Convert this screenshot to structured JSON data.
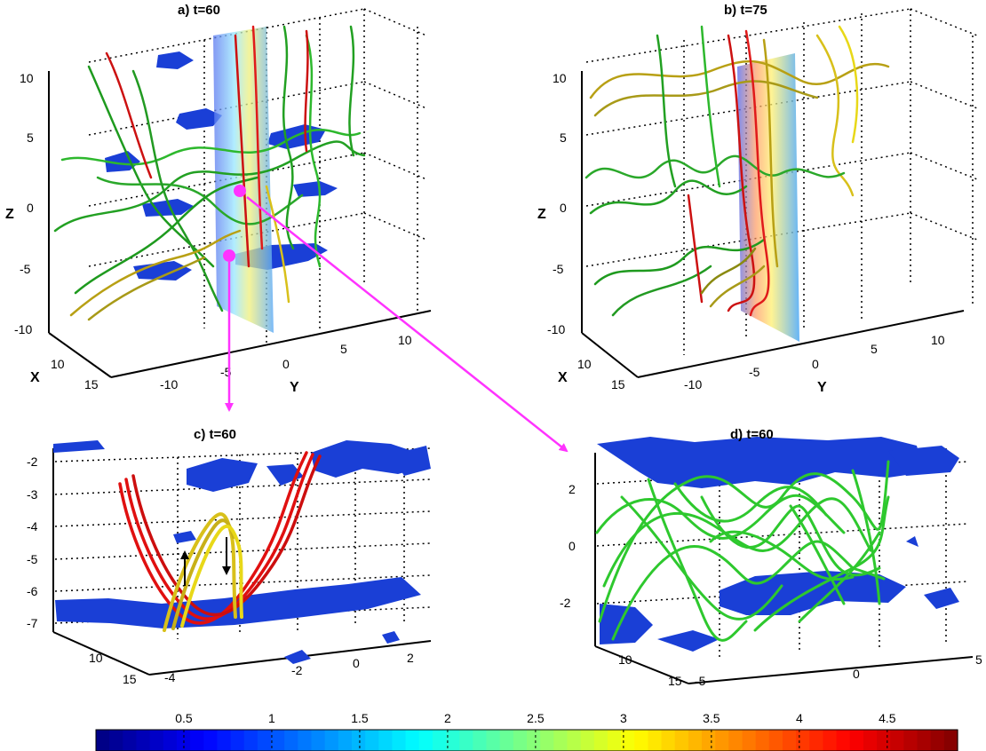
{
  "chart_data": [
    {
      "panel": "a",
      "title": "a) t=60",
      "type": "3d-fieldlines",
      "zlabel": "Z",
      "xlabel": "X",
      "ylabel": "Y",
      "z_ticks": [
        "10",
        "5",
        "0",
        "-5",
        "-10"
      ],
      "x_ticks": [
        "10",
        "15"
      ],
      "y_ticks": [
        "-10",
        "-5",
        "0",
        "5",
        "10"
      ],
      "line_colors": [
        "#cc1111",
        "#22a022",
        "#b8a014",
        "#e8d818"
      ],
      "isosurface_color": "#1a3fd6",
      "markers": [
        "#ff33ff",
        "#ff33ff"
      ]
    },
    {
      "panel": "b",
      "title": "b) t=75",
      "type": "3d-fieldlines",
      "zlabel": "Z",
      "xlabel": "X",
      "ylabel": "Y",
      "z_ticks": [
        "10",
        "5",
        "0",
        "-5",
        "-10"
      ],
      "x_ticks": [
        "10",
        "15"
      ],
      "y_ticks": [
        "-10",
        "-5",
        "0",
        "5",
        "10"
      ],
      "line_colors": [
        "#cc1111",
        "#22a022",
        "#b8a014",
        "#e8d818"
      ]
    },
    {
      "panel": "c",
      "title": "c) t=60",
      "type": "3d-fieldlines-zoom",
      "z_ticks": [
        "-2",
        "-3",
        "-4",
        "-5",
        "-6",
        "-7"
      ],
      "x_ticks": [
        "10",
        "15"
      ],
      "y_ticks": [
        "-4",
        "-2",
        "0",
        "2"
      ],
      "line_colors": [
        "#e01010",
        "#d8c01a"
      ],
      "isosurface_color": "#1a3fd6"
    },
    {
      "panel": "d",
      "title": "d) t=60",
      "type": "3d-fieldlines-zoom",
      "z_ticks": [
        "2",
        "0",
        "-2"
      ],
      "x_ticks": [
        "10",
        "15"
      ],
      "y_ticks": [
        "-5",
        "0",
        "5"
      ],
      "line_colors": [
        "#2ec82e"
      ],
      "isosurface_color": "#1a3fd6"
    }
  ],
  "colorbar": {
    "ticks": [
      "0.5",
      "1",
      "1.5",
      "2",
      "2.5",
      "3",
      "3.5",
      "4",
      "4.5"
    ],
    "tick_values": [
      0.5,
      1,
      1.5,
      2,
      2.5,
      3,
      3.5,
      4,
      4.5
    ],
    "range": [
      0.0,
      4.9
    ],
    "colormap": "jet"
  },
  "arrow_color": "#ff33ff"
}
